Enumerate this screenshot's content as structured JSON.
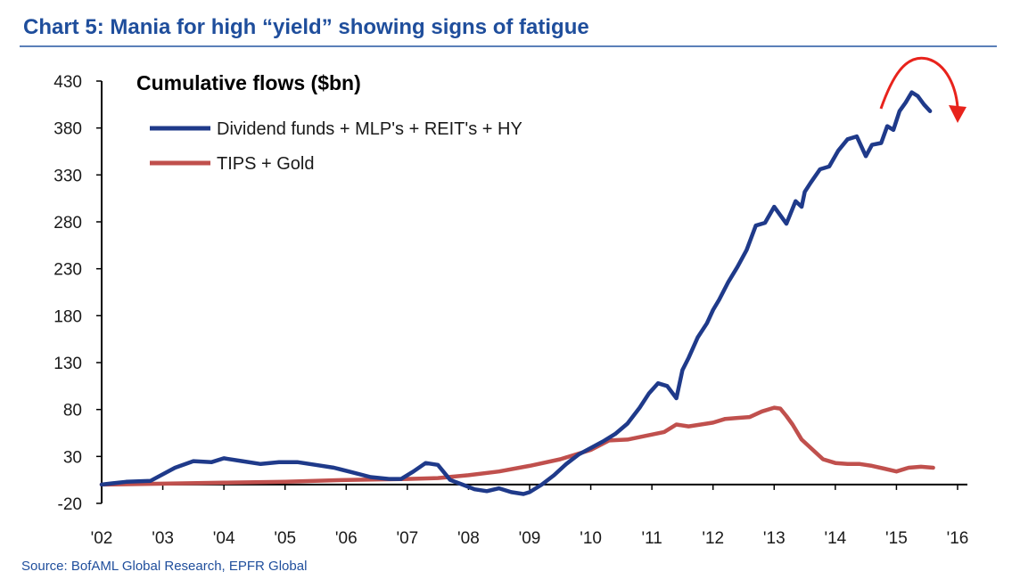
{
  "header": {
    "title": "Chart 5: Mania for high “yield” showing signs of fatigue",
    "source": "Source: BofAML Global Research, EPFR Global"
  },
  "colors": {
    "title": "#1f4e9c",
    "dividend_series": "#1f3a8a",
    "tips_series": "#c0504d",
    "annotation_arrow": "#e8231c"
  },
  "chart_data": {
    "type": "line",
    "title": "Cumulative flows ($bn)",
    "xlabel": "",
    "ylabel": "",
    "xlim": [
      2002,
      2016
    ],
    "ylim": [
      -20,
      430
    ],
    "yticks": [
      430,
      380,
      330,
      280,
      230,
      180,
      130,
      80,
      30,
      -20
    ],
    "ytick_labels": [
      "430",
      "380",
      "330",
      "280",
      "230",
      "180",
      "130",
      "80",
      "30",
      "-20"
    ],
    "xticks": [
      2002,
      2003,
      2004,
      2005,
      2006,
      2007,
      2008,
      2009,
      2010,
      2011,
      2012,
      2013,
      2014,
      2015,
      2016
    ],
    "xtick_labels": [
      "'02",
      "'03",
      "'04",
      "'05",
      "'06",
      "'07",
      "'08",
      "'09",
      "'10",
      "'11",
      "'12",
      "'13",
      "'14",
      "'15",
      "'16"
    ],
    "baseline": 0,
    "legend_position": "top-left",
    "grid": false,
    "annotation": "curved red arrow above the 2015 peak indicating a turn down",
    "series": [
      {
        "name": "Dividend funds + MLP's + REIT's + HY",
        "color": "#1f3a8a",
        "x": [
          2002.0,
          2002.4,
          2002.8,
          2003.2,
          2003.5,
          2003.8,
          2004.0,
          2004.3,
          2004.6,
          2004.9,
          2005.2,
          2005.5,
          2005.8,
          2006.1,
          2006.4,
          2006.7,
          2006.9,
          2007.1,
          2007.3,
          2007.5,
          2007.7,
          2007.9,
          2008.1,
          2008.3,
          2008.5,
          2008.7,
          2008.9,
          2009.0,
          2009.2,
          2009.4,
          2009.6,
          2009.8,
          2010.0,
          2010.2,
          2010.4,
          2010.6,
          2010.8,
          2010.95,
          2011.1,
          2011.25,
          2011.4,
          2011.5,
          2011.6,
          2011.75,
          2011.9,
          2012.0,
          2012.1,
          2012.25,
          2012.4,
          2012.55,
          2012.7,
          2012.85,
          2013.0,
          2013.2,
          2013.35,
          2013.45,
          2013.5,
          2013.6,
          2013.75,
          2013.9,
          2014.05,
          2014.2,
          2014.35,
          2014.5,
          2014.6,
          2014.75,
          2014.85,
          2014.95,
          2015.05,
          2015.15,
          2015.25,
          2015.35,
          2015.45,
          2015.55
        ],
        "values": [
          0,
          3,
          4,
          18,
          25,
          24,
          28,
          25,
          22,
          24,
          24,
          21,
          18,
          13,
          8,
          6,
          6,
          14,
          23,
          21,
          5,
          0,
          -5,
          -7,
          -4,
          -8,
          -10,
          -8,
          0,
          10,
          22,
          32,
          39,
          46,
          54,
          65,
          82,
          97,
          108,
          105,
          92,
          122,
          135,
          157,
          172,
          186,
          197,
          216,
          232,
          250,
          276,
          279,
          296,
          278,
          302,
          296,
          312,
          322,
          336,
          339,
          356,
          368,
          371,
          350,
          362,
          364,
          382,
          378,
          398,
          407,
          418,
          414,
          405,
          398
        ]
      },
      {
        "name": "TIPS + Gold",
        "color": "#c0504d",
        "x": [
          2002.0,
          2003.0,
          2004.0,
          2005.0,
          2006.0,
          2007.0,
          2007.5,
          2008.0,
          2008.5,
          2009.0,
          2009.5,
          2010.0,
          2010.3,
          2010.6,
          2010.9,
          2011.2,
          2011.4,
          2011.6,
          2011.8,
          2012.0,
          2012.2,
          2012.4,
          2012.6,
          2012.8,
          2013.0,
          2013.1,
          2013.2,
          2013.3,
          2013.45,
          2013.6,
          2013.8,
          2014.0,
          2014.2,
          2014.4,
          2014.6,
          2014.8,
          2015.0,
          2015.2,
          2015.4,
          2015.6
        ],
        "values": [
          0,
          1,
          2,
          3,
          5,
          6,
          7,
          10,
          14,
          20,
          27,
          37,
          47,
          48,
          52,
          56,
          64,
          62,
          64,
          66,
          70,
          71,
          72,
          78,
          82,
          81,
          73,
          64,
          48,
          39,
          27,
          23,
          22,
          22,
          20,
          17,
          14,
          18,
          19,
          18
        ]
      }
    ]
  }
}
